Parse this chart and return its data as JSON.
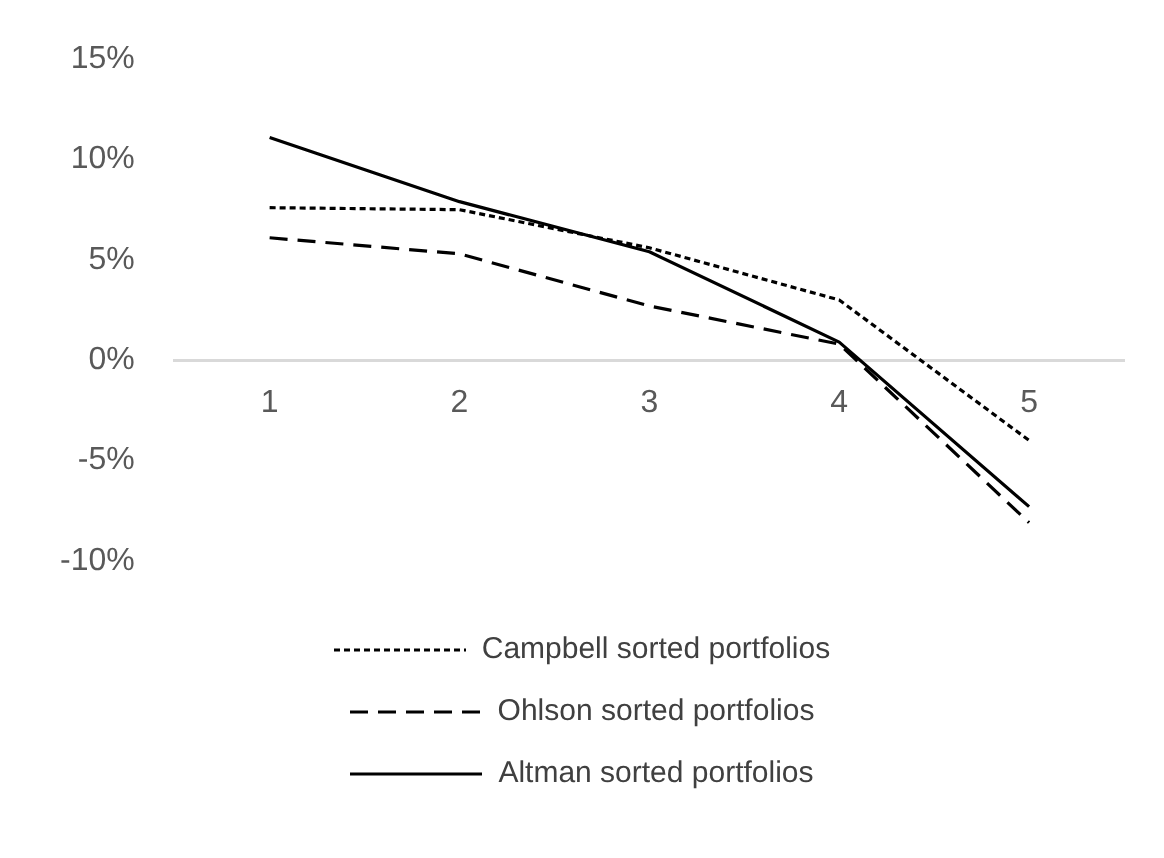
{
  "chart_data": {
    "type": "line",
    "categories": [
      "1",
      "2",
      "3",
      "4",
      "5"
    ],
    "series": [
      {
        "name": "Campbell sorted portfolios",
        "color": "#000000",
        "line_style": "dotted",
        "values": [
          7.6,
          7.5,
          5.6,
          3.0,
          -4.0
        ]
      },
      {
        "name": "Ohlson sorted portfolios",
        "color": "#000000",
        "line_style": "dashed",
        "values": [
          6.1,
          5.3,
          2.7,
          0.8,
          -8.1
        ]
      },
      {
        "name": "Altman sorted portfolios",
        "color": "#000000",
        "line_style": "solid",
        "values": [
          11.1,
          7.9,
          5.4,
          0.9,
          -7.3
        ]
      }
    ],
    "ylim": [
      -10,
      15
    ],
    "yticks": [
      {
        "value": -10,
        "label": "-10%"
      },
      {
        "value": -5,
        "label": "-5%"
      },
      {
        "value": 0,
        "label": "0%"
      },
      {
        "value": 5,
        "label": "5%"
      },
      {
        "value": 10,
        "label": "10%"
      },
      {
        "value": 15,
        "label": "15%"
      }
    ],
    "grid": false,
    "marker": "none",
    "legend": "bottom"
  }
}
